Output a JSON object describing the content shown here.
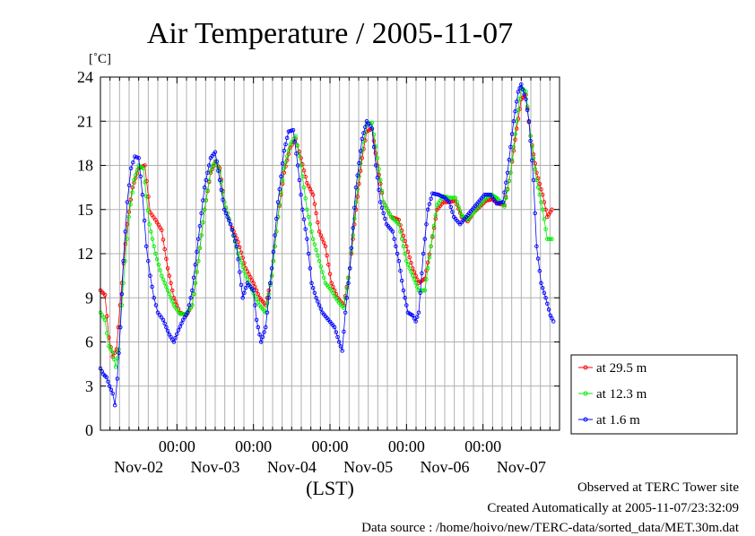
{
  "chart_data": {
    "type": "line",
    "title": "Air Temperature / 2005-11-07",
    "ylabel": "[˚C]",
    "xlabel": "(LST)",
    "ylim": [
      0,
      24
    ],
    "yticks": [
      0,
      3,
      6,
      9,
      12,
      15,
      18,
      21,
      24
    ],
    "xlim": [
      0,
      6
    ],
    "xticks": [
      {
        "x": 1,
        "time": "00:00",
        "date": "Nov-02"
      },
      {
        "x": 2,
        "time": "00:00",
        "date": "Nov-03"
      },
      {
        "x": 3,
        "time": "00:00",
        "date": "Nov-04"
      },
      {
        "x": 4,
        "time": "00:00",
        "date": "Nov-05"
      },
      {
        "x": 5,
        "time": "00:00",
        "date": "Nov-06"
      }
    ],
    "date_labels": [
      {
        "x": 0.5,
        "label": "Nov-02"
      },
      {
        "x": 1.5,
        "label": "Nov-03"
      },
      {
        "x": 2.5,
        "label": "Nov-04"
      },
      {
        "x": 3.5,
        "label": "Nov-05"
      },
      {
        "x": 4.5,
        "label": "Nov-06"
      },
      {
        "x": 5.5,
        "label": "Nov-07"
      }
    ],
    "grid": true,
    "legend_position": "right",
    "series": [
      {
        "name": "at 29.5 m",
        "color": "#ff0000",
        "points": [
          [
            0,
            9.5
          ],
          [
            0.06,
            9.2
          ],
          [
            0.11,
            6.3
          ],
          [
            0.16,
            5.0
          ],
          [
            0.21,
            5.5
          ],
          [
            0.28,
            10.0
          ],
          [
            0.35,
            14.0
          ],
          [
            0.42,
            16.5
          ],
          [
            0.5,
            17.8
          ],
          [
            0.58,
            18.0
          ],
          [
            0.65,
            14.8
          ],
          [
            0.72,
            14.3
          ],
          [
            0.8,
            13.6
          ],
          [
            0.88,
            11.0
          ],
          [
            0.96,
            9.0
          ],
          [
            1.04,
            8.0
          ],
          [
            1.12,
            7.8
          ],
          [
            1.2,
            8.5
          ],
          [
            1.28,
            11.5
          ],
          [
            1.36,
            15.0
          ],
          [
            1.44,
            17.5
          ],
          [
            1.5,
            18.2
          ],
          [
            1.56,
            17.8
          ],
          [
            1.62,
            15.5
          ],
          [
            1.7,
            14.0
          ],
          [
            1.8,
            12.8
          ],
          [
            1.9,
            11.0
          ],
          [
            2.0,
            10.0
          ],
          [
            2.08,
            9.0
          ],
          [
            2.16,
            8.5
          ],
          [
            2.24,
            10.5
          ],
          [
            2.32,
            14.5
          ],
          [
            2.4,
            17.5
          ],
          [
            2.48,
            19.2
          ],
          [
            2.55,
            19.8
          ],
          [
            2.62,
            18.5
          ],
          [
            2.7,
            16.8
          ],
          [
            2.78,
            16.0
          ],
          [
            2.86,
            13.5
          ],
          [
            2.94,
            12.5
          ],
          [
            3.02,
            10.0
          ],
          [
            3.1,
            9.0
          ],
          [
            3.18,
            8.5
          ],
          [
            3.26,
            11.0
          ],
          [
            3.34,
            15.0
          ],
          [
            3.42,
            18.5
          ],
          [
            3.48,
            20.3
          ],
          [
            3.55,
            20.5
          ],
          [
            3.62,
            18.0
          ],
          [
            3.7,
            15.5
          ],
          [
            3.8,
            14.5
          ],
          [
            3.9,
            14.3
          ],
          [
            4.0,
            12.5
          ],
          [
            4.08,
            11.0
          ],
          [
            4.16,
            10.0
          ],
          [
            4.24,
            10.3
          ],
          [
            4.32,
            12.5
          ],
          [
            4.4,
            15.0
          ],
          [
            4.48,
            15.5
          ],
          [
            4.56,
            15.5
          ],
          [
            4.64,
            15.6
          ],
          [
            4.72,
            14.5
          ],
          [
            4.8,
            14.2
          ],
          [
            4.88,
            14.8
          ],
          [
            4.96,
            15.2
          ],
          [
            5.04,
            15.6
          ],
          [
            5.12,
            15.7
          ],
          [
            5.2,
            15.4
          ],
          [
            5.28,
            15.3
          ],
          [
            5.36,
            17.5
          ],
          [
            5.44,
            20.5
          ],
          [
            5.5,
            22.5
          ],
          [
            5.56,
            22.8
          ],
          [
            5.62,
            20.0
          ],
          [
            5.7,
            17.5
          ],
          [
            5.78,
            16.0
          ],
          [
            5.84,
            14.5
          ],
          [
            5.9,
            15.0
          ]
        ]
      },
      {
        "name": "at 12.3 m",
        "color": "#00ee00",
        "points": [
          [
            0,
            8.0
          ],
          [
            0.06,
            7.5
          ],
          [
            0.11,
            5.7
          ],
          [
            0.16,
            5.3
          ],
          [
            0.2,
            4.3
          ],
          [
            0.24,
            5.5
          ],
          [
            0.3,
            10.0
          ],
          [
            0.37,
            14.5
          ],
          [
            0.44,
            17.0
          ],
          [
            0.5,
            18.0
          ],
          [
            0.56,
            17.8
          ],
          [
            0.64,
            14.0
          ],
          [
            0.72,
            12.0
          ],
          [
            0.8,
            10.5
          ],
          [
            0.88,
            9.5
          ],
          [
            0.96,
            8.5
          ],
          [
            1.04,
            7.9
          ],
          [
            1.12,
            7.9
          ],
          [
            1.2,
            8.5
          ],
          [
            1.28,
            11.5
          ],
          [
            1.36,
            15.0
          ],
          [
            1.44,
            17.6
          ],
          [
            1.5,
            18.3
          ],
          [
            1.56,
            17.6
          ],
          [
            1.62,
            15.5
          ],
          [
            1.7,
            14.0
          ],
          [
            1.8,
            12.0
          ],
          [
            1.9,
            10.5
          ],
          [
            2.0,
            9.3
          ],
          [
            2.08,
            8.5
          ],
          [
            2.16,
            8.0
          ],
          [
            2.24,
            10.5
          ],
          [
            2.32,
            14.5
          ],
          [
            2.4,
            17.8
          ],
          [
            2.48,
            19.4
          ],
          [
            2.55,
            20.0
          ],
          [
            2.62,
            18.0
          ],
          [
            2.7,
            15.0
          ],
          [
            2.78,
            13.0
          ],
          [
            2.86,
            11.5
          ],
          [
            2.94,
            10.0
          ],
          [
            3.02,
            9.5
          ],
          [
            3.1,
            8.8
          ],
          [
            3.18,
            8.3
          ],
          [
            3.26,
            11.0
          ],
          [
            3.34,
            15.5
          ],
          [
            3.42,
            19.0
          ],
          [
            3.48,
            20.8
          ],
          [
            3.55,
            20.9
          ],
          [
            3.62,
            18.5
          ],
          [
            3.7,
            15.5
          ],
          [
            3.8,
            14.5
          ],
          [
            3.9,
            14.0
          ],
          [
            4.0,
            11.5
          ],
          [
            4.08,
            10.5
          ],
          [
            4.16,
            9.5
          ],
          [
            4.24,
            9.5
          ],
          [
            4.32,
            12.5
          ],
          [
            4.4,
            15.3
          ],
          [
            4.48,
            15.9
          ],
          [
            4.56,
            15.8
          ],
          [
            4.64,
            15.8
          ],
          [
            4.72,
            14.6
          ],
          [
            4.8,
            14.3
          ],
          [
            4.88,
            14.8
          ],
          [
            4.96,
            15.3
          ],
          [
            5.04,
            15.8
          ],
          [
            5.12,
            16.0
          ],
          [
            5.2,
            15.7
          ],
          [
            5.28,
            15.2
          ],
          [
            5.36,
            17.5
          ],
          [
            5.44,
            21.0
          ],
          [
            5.5,
            23.3
          ],
          [
            5.56,
            23.0
          ],
          [
            5.62,
            20.0
          ],
          [
            5.7,
            17.0
          ],
          [
            5.78,
            15.0
          ],
          [
            5.84,
            13.0
          ],
          [
            5.9,
            13.0
          ]
        ]
      },
      {
        "name": "at 1.6 m",
        "color": "#0000ff",
        "points": [
          [
            0,
            4.2
          ],
          [
            0.04,
            3.8
          ],
          [
            0.08,
            3.6
          ],
          [
            0.12,
            3.0
          ],
          [
            0.16,
            2.5
          ],
          [
            0.19,
            1.7
          ],
          [
            0.22,
            3.5
          ],
          [
            0.26,
            7.0
          ],
          [
            0.3,
            11.5
          ],
          [
            0.35,
            15.5
          ],
          [
            0.4,
            17.8
          ],
          [
            0.45,
            18.6
          ],
          [
            0.5,
            18.5
          ],
          [
            0.55,
            16.0
          ],
          [
            0.6,
            12.5
          ],
          [
            0.65,
            10.5
          ],
          [
            0.7,
            9.0
          ],
          [
            0.75,
            8.0
          ],
          [
            0.82,
            7.5
          ],
          [
            0.9,
            6.5
          ],
          [
            0.96,
            6.0
          ],
          [
            1.02,
            6.8
          ],
          [
            1.08,
            7.5
          ],
          [
            1.14,
            8.0
          ],
          [
            1.2,
            9.5
          ],
          [
            1.28,
            13.0
          ],
          [
            1.36,
            16.5
          ],
          [
            1.44,
            18.5
          ],
          [
            1.5,
            18.9
          ],
          [
            1.56,
            17.0
          ],
          [
            1.62,
            15.0
          ],
          [
            1.7,
            14.0
          ],
          [
            1.78,
            12.5
          ],
          [
            1.86,
            9.0
          ],
          [
            1.92,
            10.0
          ],
          [
            2.0,
            9.5
          ],
          [
            2.04,
            7.5
          ],
          [
            2.1,
            6.0
          ],
          [
            2.16,
            7.0
          ],
          [
            2.24,
            11.0
          ],
          [
            2.32,
            15.5
          ],
          [
            2.4,
            19.0
          ],
          [
            2.46,
            20.3
          ],
          [
            2.52,
            20.4
          ],
          [
            2.58,
            18.0
          ],
          [
            2.64,
            15.0
          ],
          [
            2.7,
            13.0
          ],
          [
            2.76,
            10.0
          ],
          [
            2.82,
            9.0
          ],
          [
            2.9,
            8.0
          ],
          [
            2.98,
            7.5
          ],
          [
            3.06,
            7.0
          ],
          [
            3.12,
            6.0
          ],
          [
            3.16,
            5.4
          ],
          [
            3.2,
            8.0
          ],
          [
            3.26,
            11.0
          ],
          [
            3.34,
            16.5
          ],
          [
            3.42,
            19.8
          ],
          [
            3.48,
            21.0
          ],
          [
            3.55,
            20.5
          ],
          [
            3.6,
            18.0
          ],
          [
            3.66,
            15.5
          ],
          [
            3.74,
            14.0
          ],
          [
            3.82,
            13.5
          ],
          [
            3.9,
            11.5
          ],
          [
            3.96,
            9.5
          ],
          [
            4.02,
            8.0
          ],
          [
            4.08,
            7.8
          ],
          [
            4.12,
            7.4
          ],
          [
            4.16,
            8.0
          ],
          [
            4.22,
            12.0
          ],
          [
            4.28,
            15.0
          ],
          [
            4.34,
            16.1
          ],
          [
            4.42,
            16.0
          ],
          [
            4.5,
            15.8
          ],
          [
            4.56,
            15.5
          ],
          [
            4.62,
            14.5
          ],
          [
            4.7,
            14.0
          ],
          [
            4.78,
            14.5
          ],
          [
            4.86,
            15.0
          ],
          [
            4.94,
            15.5
          ],
          [
            5.02,
            16.0
          ],
          [
            5.1,
            16.0
          ],
          [
            5.18,
            15.4
          ],
          [
            5.26,
            15.5
          ],
          [
            5.32,
            17.5
          ],
          [
            5.4,
            21.0
          ],
          [
            5.46,
            23.0
          ],
          [
            5.5,
            23.5
          ],
          [
            5.56,
            22.5
          ],
          [
            5.6,
            21.0
          ],
          [
            5.66,
            17.0
          ],
          [
            5.7,
            12.5
          ],
          [
            5.76,
            10.0
          ],
          [
            5.82,
            9.0
          ],
          [
            5.88,
            7.8
          ],
          [
            5.92,
            7.4
          ]
        ]
      }
    ]
  },
  "footer": {
    "line1": "Observed at TERC Tower site",
    "line2": "Created Automatically at 2005-11-07/23:32:09",
    "line3": "Data source : /home/hoivo/new/TERC-data/sorted_data/MET.30m.dat"
  }
}
